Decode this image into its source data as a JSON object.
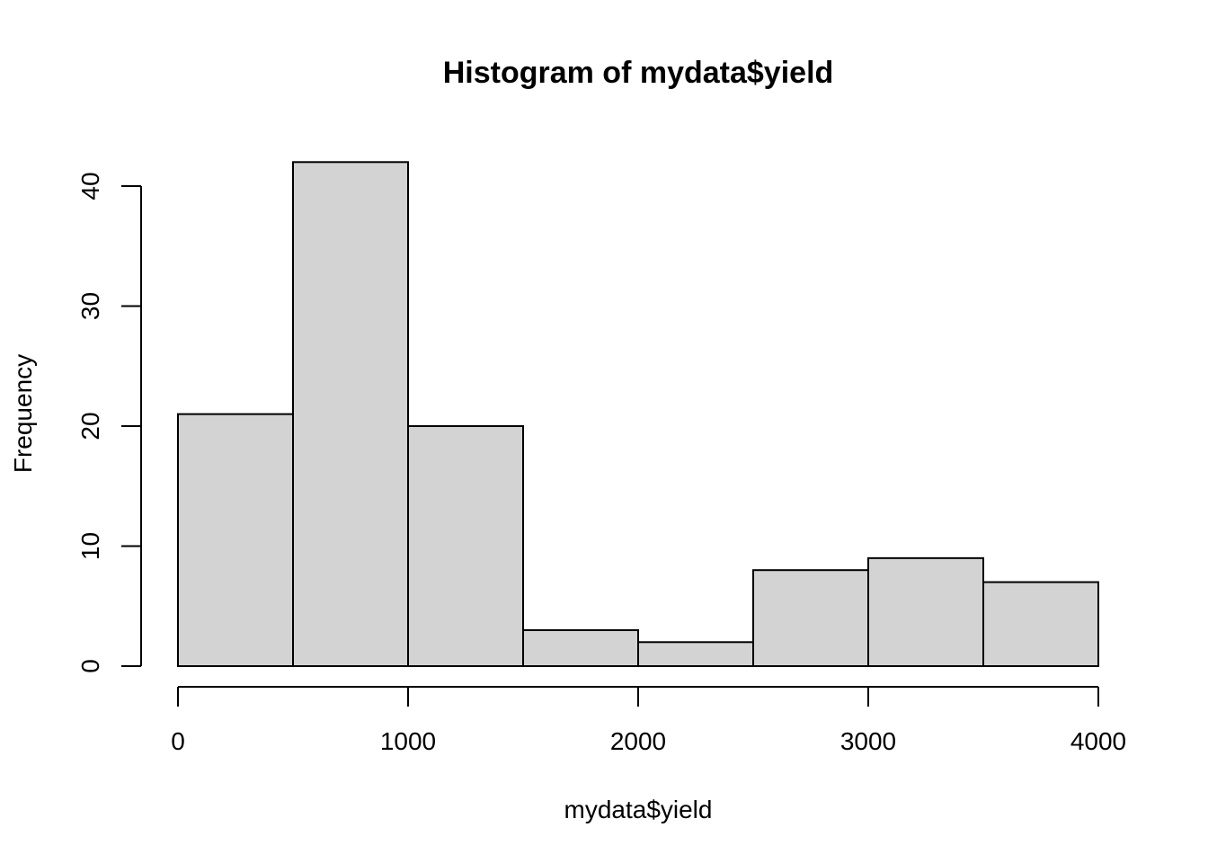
{
  "chart_data": {
    "type": "bar",
    "title": "Histogram of mydata$yield",
    "xlabel": "mydata$yield",
    "ylabel": "Frequency",
    "bin_edges": [
      0,
      500,
      1000,
      1500,
      2000,
      2500,
      3000,
      3500,
      4000
    ],
    "values": [
      21,
      42,
      20,
      3,
      2,
      8,
      9,
      7
    ],
    "xlim": [
      0,
      4000
    ],
    "ylim": [
      0,
      40
    ],
    "x_ticks": [
      0,
      1000,
      2000,
      3000,
      4000
    ],
    "y_ticks": [
      0,
      10,
      20,
      30,
      40
    ],
    "bar_color": "#d3d3d3",
    "grid": false
  }
}
